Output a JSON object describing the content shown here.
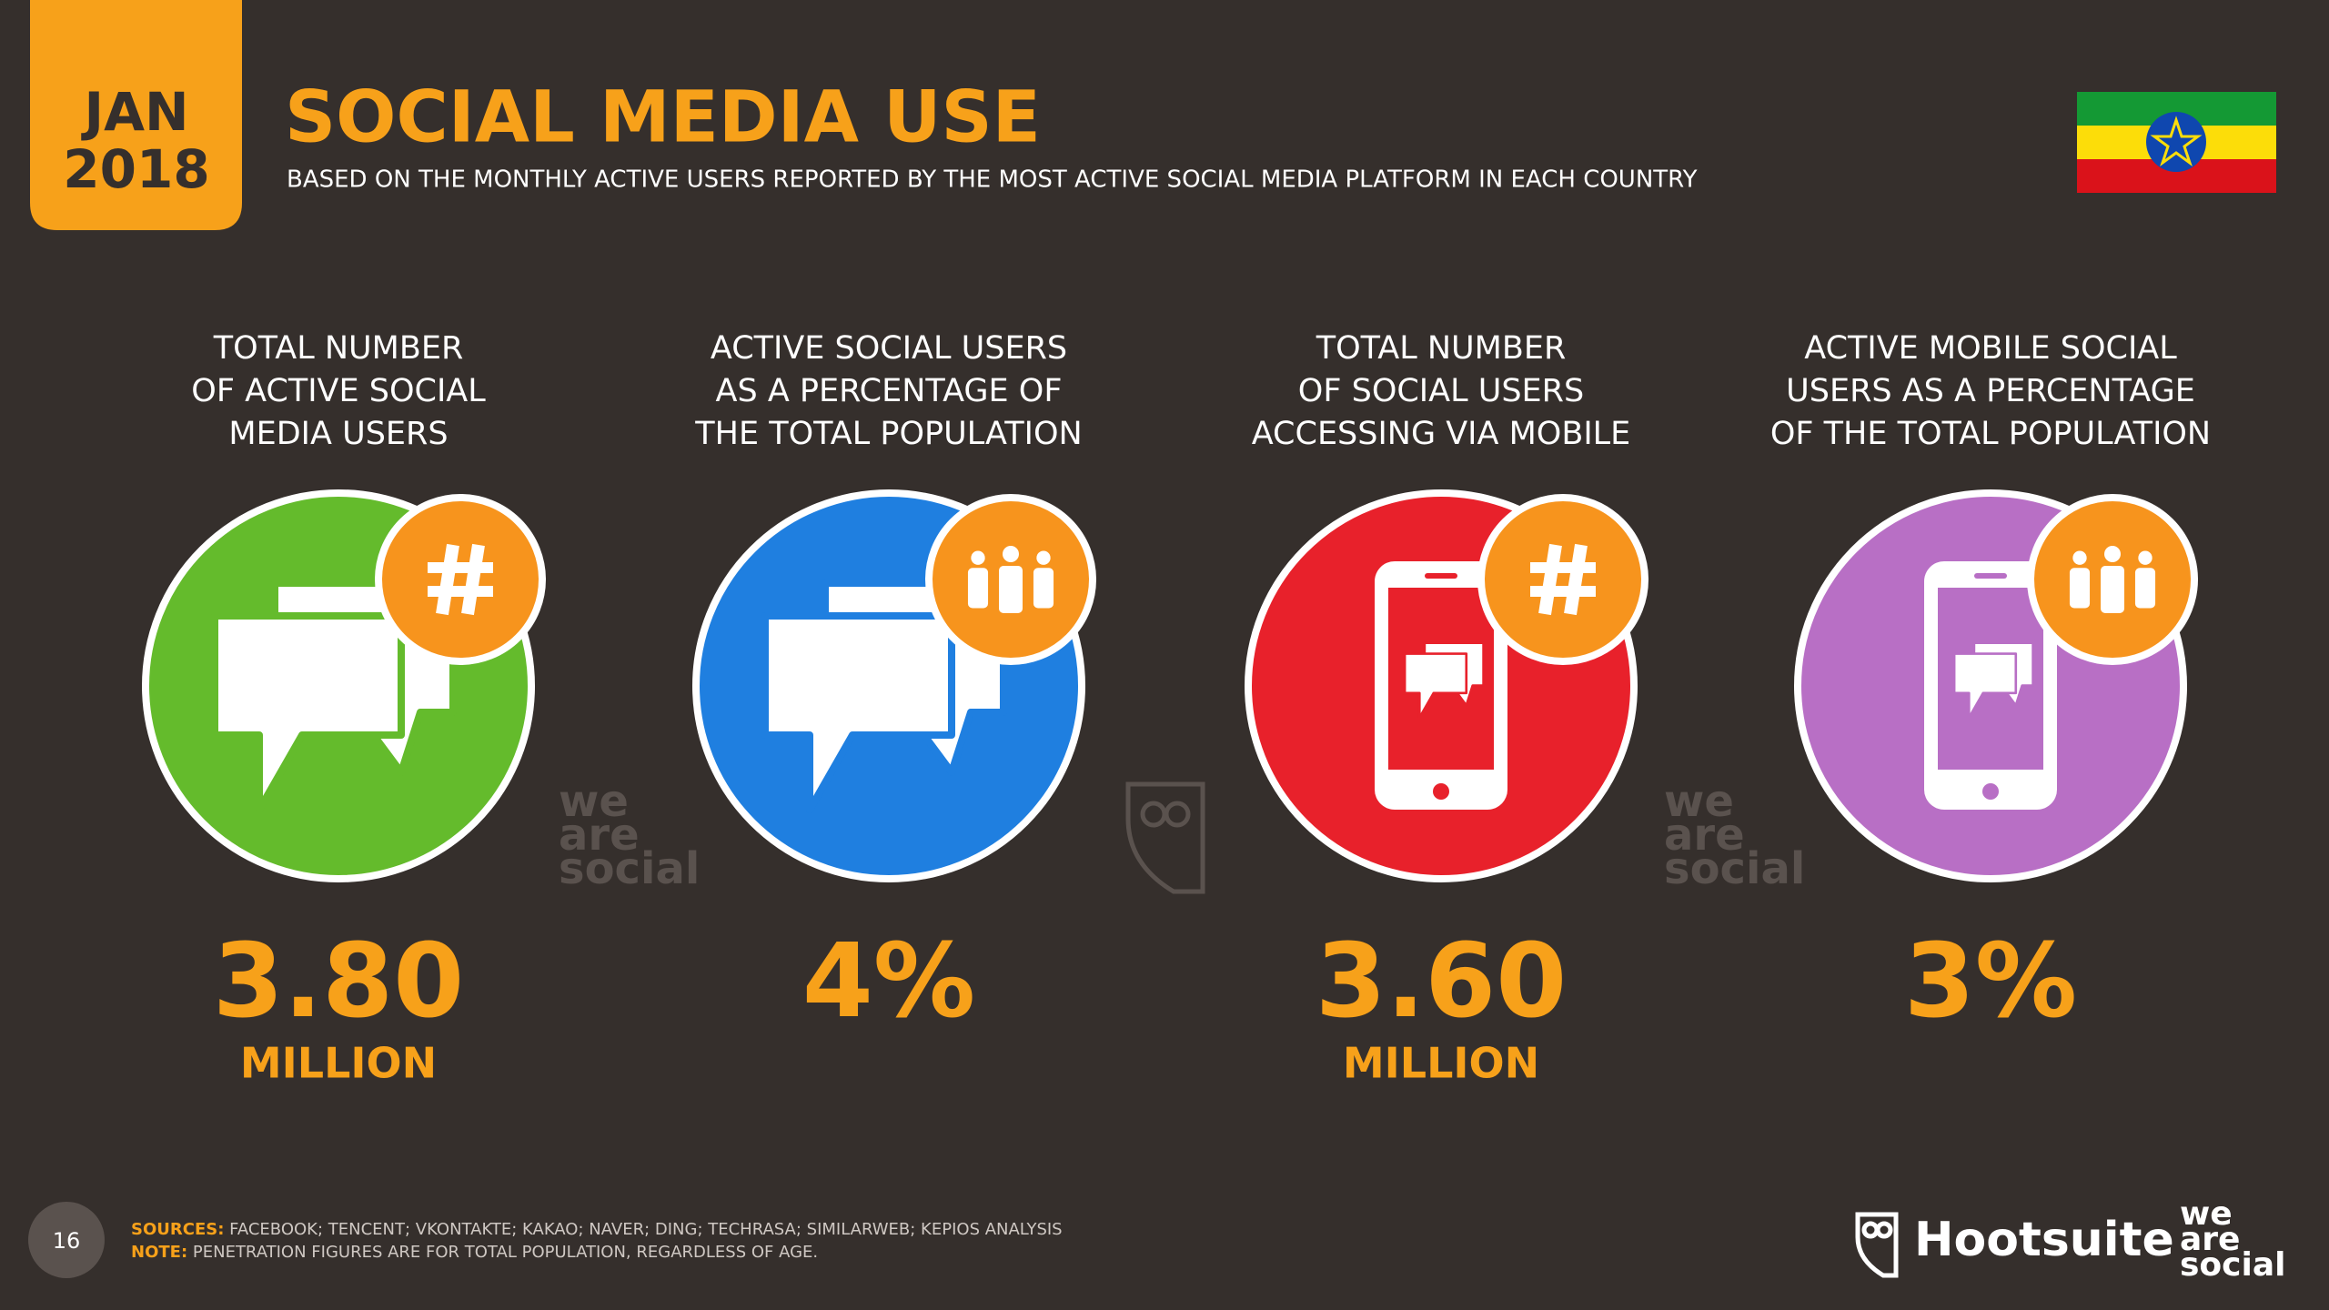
{
  "header": {
    "badge": [
      "JAN",
      "2018"
    ],
    "title": "SOCIAL MEDIA USE",
    "subtitle": "BASED ON THE MONTHLY ACTIVE USERS REPORTED BY THE MOST ACTIVE SOCIAL MEDIA PLATFORM IN EACH COUNTRY"
  },
  "stats": [
    {
      "label": [
        "TOTAL NUMBER",
        "OF ACTIVE SOCIAL",
        "MEDIA USERS"
      ],
      "value": "3.80",
      "unit": "MILLION"
    },
    {
      "label": [
        "ACTIVE SOCIAL USERS",
        "AS A PERCENTAGE OF",
        "THE TOTAL POPULATION"
      ],
      "value": "4%"
    },
    {
      "label": [
        "TOTAL NUMBER",
        "OF SOCIAL USERS",
        "ACCESSING VIA MOBILE"
      ],
      "value": "3.60",
      "unit": "MILLION"
    },
    {
      "label": [
        "ACTIVE MOBILE SOCIAL",
        "USERS AS A PERCENTAGE",
        "OF THE TOTAL POPULATION"
      ],
      "value": "3%"
    }
  ],
  "watermark": [
    "we",
    "are",
    "social"
  ],
  "footer": {
    "page": "16",
    "sources_label": "SOURCES:",
    "sources": "FACEBOOK; TENCENT; VKONTAKTE; KAKAO; NAVER; DING; TECHRASA; SIMILARWEB; KEPIOS ANALYSIS",
    "note_label": "NOTE:",
    "note": "PENETRATION FIGURES ARE FOR TOTAL POPULATION, REGARDLESS OF AGE.",
    "brand": "Hootsuite",
    "logo": [
      "we",
      "are",
      "social"
    ]
  }
}
